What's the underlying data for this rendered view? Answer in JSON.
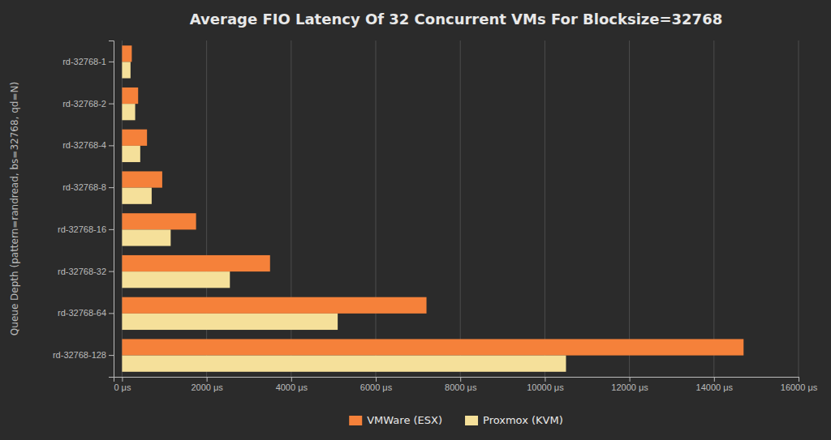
{
  "chart_data": {
    "type": "bar",
    "orientation": "horizontal",
    "title": "Average FIO Latency Of 32 Concurrent VMs For Blocksize=32768",
    "ylabel": "Queue Depth (pattern=randread, bs=32768, qd=N)",
    "categories": [
      "rd-32768-128",
      "rd-32768-64",
      "rd-32768-32",
      "rd-32768-16",
      "rd-32768-8",
      "rd-32768-4",
      "rd-32768-2",
      "rd-32768-1"
    ],
    "series": [
      {
        "name": "VMWare (ESX)",
        "color": "#f5813a",
        "values": [
          14700,
          7200,
          3500,
          1750,
          950,
          590,
          380,
          230
        ]
      },
      {
        "name": "Proxmox (KVM)",
        "color": "#f5e09a",
        "values": [
          10500,
          5100,
          2550,
          1150,
          700,
          430,
          310,
          200
        ]
      }
    ],
    "xlim": [
      -200,
      16000
    ],
    "xticks": [
      {
        "value": 0,
        "label": "0 μs"
      },
      {
        "value": 2000,
        "label": "2000 μs"
      },
      {
        "value": 4000,
        "label": "4000 μs"
      },
      {
        "value": 6000,
        "label": "6000 μs"
      },
      {
        "value": 8000,
        "label": "8000 μs"
      },
      {
        "value": 10000,
        "label": "10000 μs"
      },
      {
        "value": 12000,
        "label": "12000 μs"
      },
      {
        "value": 14000,
        "label": "14000 μs"
      },
      {
        "value": 16000,
        "label": "16000 μs"
      }
    ],
    "grid": true,
    "legend": "bottom"
  }
}
